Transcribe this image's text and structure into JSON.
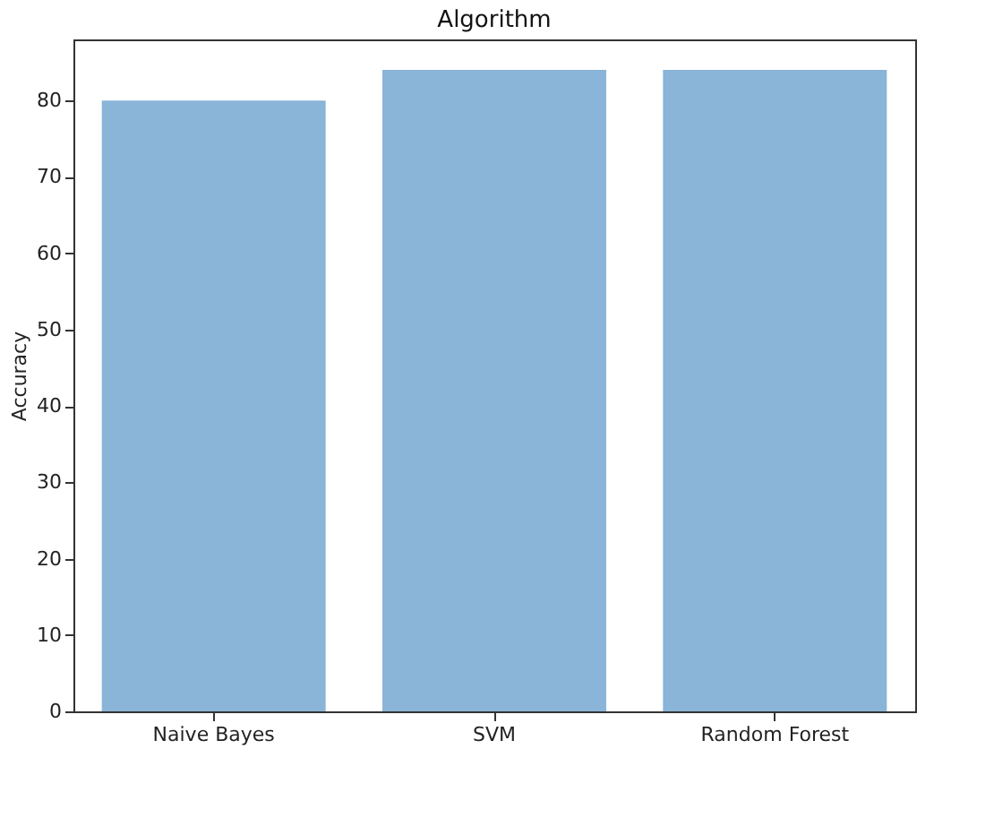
{
  "chart_data": {
    "type": "bar",
    "title": "Algorithm",
    "ylabel": "Accuracy",
    "categories": [
      "Naive Bayes",
      "SVM",
      "Random Forest"
    ],
    "values": [
      80,
      84,
      84
    ],
    "color": "#8ab4d8",
    "ylim": [
      0,
      88
    ],
    "yticks": [
      0,
      10,
      20,
      30,
      40,
      50,
      60,
      70,
      80
    ],
    "grid": false
  }
}
